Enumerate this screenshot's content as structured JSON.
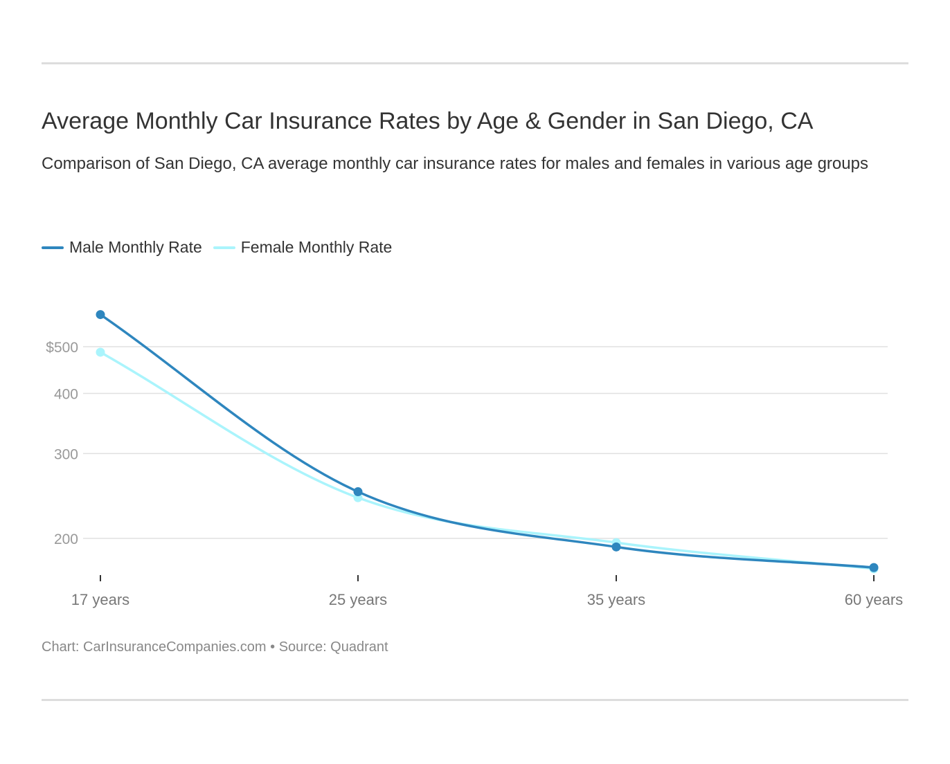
{
  "title": "Average Monthly Car Insurance Rates by Age & Gender in San Diego, CA",
  "subtitle": "Comparison of San Diego, CA average monthly car insurance rates for males and females in various age groups",
  "footer": {
    "credit": "Chart: CarInsuranceCompanies.com • Source: Quadrant"
  },
  "colors": {
    "male": "#2e86be",
    "female": "#aaf4fc",
    "grid": "#e0e0e0",
    "tick_label": "#999999",
    "x_label": "#777777",
    "rule": "#dddddd"
  },
  "chart_data": {
    "type": "line",
    "title": "Average Monthly Car Insurance Rates by Age & Gender in San Diego, CA",
    "categories": [
      "17 years",
      "25 years",
      "35 years",
      "60 years"
    ],
    "series": [
      {
        "name": "Male Monthly Rate",
        "values": [
          583,
          250,
          192,
          174
        ]
      },
      {
        "name": "Female Monthly Rate",
        "values": [
          487,
          243,
          196,
          173
        ]
      }
    ],
    "y_scale": "log",
    "y_ticks": [
      {
        "value": 500,
        "label": "$500"
      },
      {
        "value": 400,
        "label": "400"
      },
      {
        "value": 300,
        "label": "300"
      },
      {
        "value": 200,
        "label": "200"
      }
    ],
    "ylim": [
      170,
      620
    ],
    "grid": true,
    "legend_position": "top-left",
    "xlabel": "",
    "ylabel": ""
  }
}
